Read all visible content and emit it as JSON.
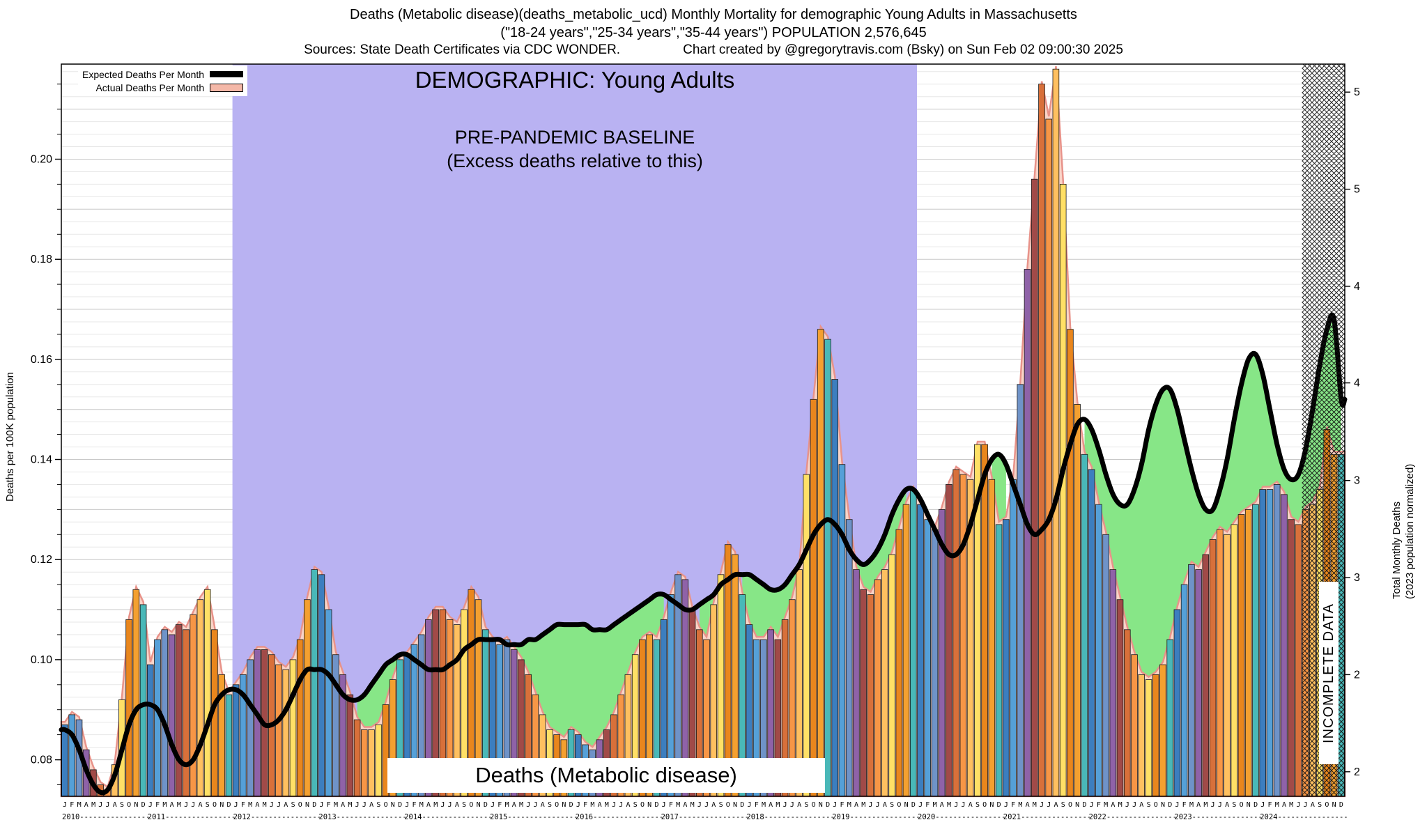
{
  "header": {
    "line1": "Deaths (Metabolic disease)(deaths_metabolic_ucd) Monthly Mortality for demographic Young Adults in Massachusetts",
    "line2": "(\"18-24 years\",\"25-34 years\",\"35-44 years\") POPULATION 2,576,645",
    "line3_left": "Sources: State Death Certificates via CDC WONDER.",
    "line3_right": "Chart created by @gregorytravis.com (Bsky) on Sun Feb 02 09:00:30 2025"
  },
  "legend": {
    "expected_label": "Expected Deaths Per Month",
    "actual_label": "Actual Deaths Per Month"
  },
  "overlay": {
    "demographic_title": "DEMOGRAPHIC: Young Adults",
    "baseline_line1": "PRE-PANDEMIC BASELINE",
    "baseline_line2": "(Excess deaths relative to this)",
    "bottom_label": "Deaths (Metabolic disease)",
    "incomplete_label": "INCOMPLETE DATA"
  },
  "axes": {
    "left_title": "Deaths per 100K population",
    "right_title_line1": "Total Monthly Deaths",
    "right_title_line2": "(2023 population normalized)"
  },
  "chart_data": {
    "type": "bar",
    "title": "Deaths (Metabolic disease) Monthly Mortality for demographic Young Adults in Massachusetts",
    "xlabel": "",
    "ylabel_left": "Deaths per 100K population",
    "ylabel_right": "Total Monthly Deaths (2023 population normalized)",
    "ylim": [
      0.0727,
      0.219
    ],
    "grid": true,
    "legend_position": "top-left",
    "month_letters": [
      "J",
      "F",
      "M",
      "A",
      "M",
      "J",
      "J",
      "A",
      "S",
      "O",
      "N",
      "D"
    ],
    "years": [
      "2010",
      "2011",
      "2012",
      "2013",
      "2014",
      "2015",
      "2016",
      "2017",
      "2018",
      "2019",
      "2020",
      "2021",
      "2022",
      "2023",
      "2024"
    ],
    "left_ticks": [
      {
        "v": 0.08,
        "label": "0.08"
      },
      {
        "v": 0.1,
        "label": "0.10"
      },
      {
        "v": 0.12,
        "label": "0.12"
      },
      {
        "v": 0.14,
        "label": "0.14"
      },
      {
        "v": 0.16,
        "label": "0.16"
      },
      {
        "v": 0.18,
        "label": "0.18"
      },
      {
        "v": 0.2,
        "label": "0.20"
      }
    ],
    "right_ticks": [
      {
        "v": 0.0776,
        "label": "2"
      },
      {
        "v": 0.097,
        "label": "2"
      },
      {
        "v": 0.1164,
        "label": "3"
      },
      {
        "v": 0.1358,
        "label": "3"
      },
      {
        "v": 0.1553,
        "label": "4"
      },
      {
        "v": 0.1746,
        "label": "4"
      },
      {
        "v": 0.194,
        "label": "5"
      },
      {
        "v": 0.2134,
        "label": "5"
      }
    ],
    "baseline_region": {
      "start_index": 24,
      "end_index": 120,
      "color": "#b9b2f2"
    },
    "incomplete_region": {
      "start_index": 174,
      "label": "INCOMPLETE DATA"
    },
    "month_colors": [
      "#3c7ebf",
      "#55a0d8",
      "#6f93c8",
      "#8f62a8",
      "#a14a48",
      "#d8703a",
      "#f79646",
      "#ffc060",
      "#ffe066",
      "#e9861d",
      "#f4a030",
      "#49b8b8"
    ],
    "colors": {
      "expected_line": "#000000",
      "actual_outline": "#e8938a",
      "actual_fill": "#f9d4c8",
      "deficit_fill": "#87e687",
      "baseline_fill": "#b9b2f2",
      "grid_minor": "#e7e7e7",
      "grid_major": "#c8c8c8"
    },
    "series": [
      {
        "name": "Actual Deaths Per Month",
        "type": "bar",
        "values": [
          0.087,
          0.089,
          0.088,
          0.082,
          0.078,
          0.075,
          0.074,
          0.079,
          0.092,
          0.108,
          0.114,
          0.111,
          0.099,
          0.104,
          0.106,
          0.105,
          0.107,
          0.106,
          0.109,
          0.112,
          0.114,
          0.106,
          0.097,
          0.093,
          0.095,
          0.097,
          0.1,
          0.102,
          0.102,
          0.101,
          0.099,
          0.098,
          0.1,
          0.104,
          0.112,
          0.118,
          0.117,
          0.11,
          0.101,
          0.097,
          0.093,
          0.088,
          0.086,
          0.086,
          0.087,
          0.091,
          0.096,
          0.1,
          0.101,
          0.103,
          0.105,
          0.108,
          0.11,
          0.11,
          0.108,
          0.107,
          0.11,
          0.114,
          0.112,
          0.106,
          0.104,
          0.103,
          0.104,
          0.102,
          0.1,
          0.097,
          0.093,
          0.089,
          0.086,
          0.085,
          0.084,
          0.086,
          0.085,
          0.083,
          0.082,
          0.084,
          0.086,
          0.089,
          0.093,
          0.097,
          0.101,
          0.104,
          0.105,
          0.104,
          0.108,
          0.113,
          0.117,
          0.116,
          0.11,
          0.106,
          0.104,
          0.111,
          0.117,
          0.123,
          0.121,
          0.113,
          0.107,
          0.104,
          0.104,
          0.106,
          0.104,
          0.108,
          0.112,
          0.118,
          0.137,
          0.152,
          0.166,
          0.164,
          0.156,
          0.139,
          0.128,
          0.118,
          0.114,
          0.113,
          0.116,
          0.118,
          0.121,
          0.126,
          0.131,
          0.134,
          0.131,
          0.128,
          0.126,
          0.13,
          0.135,
          0.138,
          0.137,
          0.136,
          0.143,
          0.143,
          0.136,
          0.127,
          0.128,
          0.136,
          0.155,
          0.178,
          0.196,
          0.215,
          0.208,
          0.218,
          0.195,
          0.166,
          0.151,
          0.141,
          0.138,
          0.131,
          0.125,
          0.118,
          0.112,
          0.106,
          0.101,
          0.097,
          0.096,
          0.097,
          0.099,
          0.104,
          0.11,
          0.115,
          0.119,
          0.118,
          0.121,
          0.124,
          0.126,
          0.125,
          0.127,
          0.129,
          0.13,
          0.131,
          0.134,
          0.134,
          0.135,
          0.133,
          0.128,
          0.127,
          0.13,
          0.131,
          0.134,
          0.146,
          0.141,
          0.141
        ]
      },
      {
        "name": "Expected Deaths Per Month",
        "type": "line",
        "values": [
          0.086,
          0.085,
          0.082,
          0.078,
          0.075,
          0.0735,
          0.074,
          0.077,
          0.082,
          0.087,
          0.09,
          0.091,
          0.091,
          0.09,
          0.087,
          0.083,
          0.08,
          0.079,
          0.08,
          0.083,
          0.087,
          0.091,
          0.093,
          0.094,
          0.094,
          0.093,
          0.091,
          0.089,
          0.087,
          0.087,
          0.088,
          0.09,
          0.093,
          0.096,
          0.098,
          0.098,
          0.098,
          0.097,
          0.095,
          0.093,
          0.092,
          0.092,
          0.093,
          0.095,
          0.097,
          0.099,
          0.1,
          0.101,
          0.101,
          0.1,
          0.099,
          0.098,
          0.098,
          0.098,
          0.099,
          0.1,
          0.102,
          0.103,
          0.104,
          0.104,
          0.104,
          0.104,
          0.103,
          0.103,
          0.103,
          0.104,
          0.104,
          0.105,
          0.106,
          0.107,
          0.107,
          0.107,
          0.107,
          0.107,
          0.106,
          0.106,
          0.106,
          0.107,
          0.108,
          0.109,
          0.11,
          0.111,
          0.112,
          0.113,
          0.113,
          0.112,
          0.111,
          0.11,
          0.11,
          0.111,
          0.112,
          0.113,
          0.115,
          0.116,
          0.117,
          0.117,
          0.117,
          0.116,
          0.115,
          0.114,
          0.114,
          0.115,
          0.117,
          0.119,
          0.122,
          0.125,
          0.127,
          0.128,
          0.127,
          0.125,
          0.122,
          0.12,
          0.119,
          0.12,
          0.122,
          0.125,
          0.129,
          0.132,
          0.134,
          0.134,
          0.132,
          0.129,
          0.126,
          0.123,
          0.121,
          0.121,
          0.123,
          0.127,
          0.132,
          0.137,
          0.14,
          0.141,
          0.139,
          0.135,
          0.131,
          0.127,
          0.125,
          0.126,
          0.128,
          0.132,
          0.138,
          0.143,
          0.147,
          0.148,
          0.146,
          0.142,
          0.137,
          0.133,
          0.131,
          0.131,
          0.134,
          0.139,
          0.146,
          0.151,
          0.154,
          0.154,
          0.15,
          0.144,
          0.138,
          0.133,
          0.13,
          0.13,
          0.134,
          0.14,
          0.148,
          0.155,
          0.16,
          0.161,
          0.157,
          0.15,
          0.143,
          0.138,
          0.136,
          0.137,
          0.142,
          0.15,
          0.159,
          0.166,
          0.168,
          0.152
        ]
      }
    ]
  }
}
